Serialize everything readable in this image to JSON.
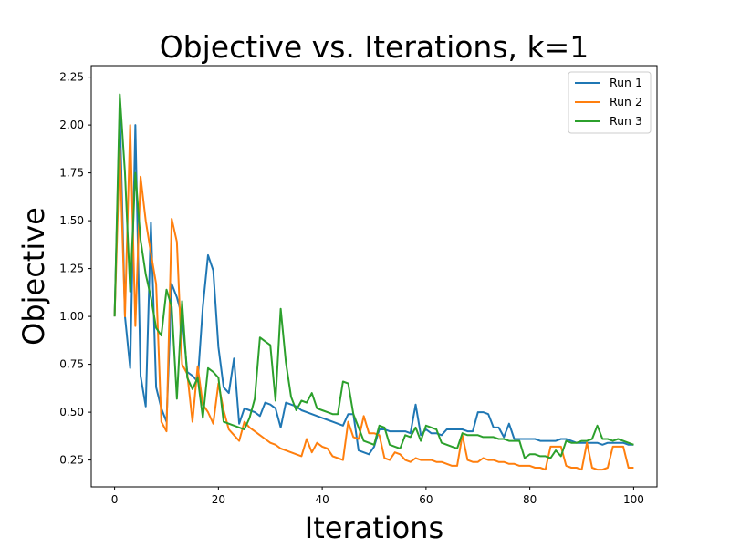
{
  "chart_data": {
    "type": "line",
    "title": "Objective vs. Iterations, k=1",
    "xlabel": "Iterations",
    "ylabel": "Objective",
    "xlim": [
      -4.5,
      104.5
    ],
    "ylim": [
      0.11,
      2.31
    ],
    "xticks": [
      "0",
      "20",
      "40",
      "60",
      "80",
      "100"
    ],
    "yticks": [
      "0.25",
      "0.50",
      "0.75",
      "1.00",
      "1.25",
      "1.50",
      "1.75",
      "2.00",
      "2.25"
    ],
    "grid": false,
    "legend_position": "top-right",
    "series": [
      {
        "name": "Run 1",
        "color": "#1f77b4",
        "x": [
          0,
          1,
          2,
          3,
          4,
          5,
          6,
          7,
          8,
          9,
          10,
          11,
          12,
          13,
          14,
          15,
          16,
          17,
          18,
          19,
          20,
          21,
          22,
          23,
          24,
          25,
          26,
          27,
          28,
          29,
          30,
          31,
          32,
          33,
          34,
          35,
          36,
          37,
          38,
          39,
          40,
          41,
          42,
          43,
          44,
          45,
          46,
          47,
          48,
          49,
          50,
          51,
          52,
          53,
          54,
          55,
          56,
          57,
          58,
          59,
          60,
          61,
          62,
          63,
          64,
          65,
          66,
          67,
          68,
          69,
          70,
          71,
          72,
          73,
          74,
          75,
          76,
          77,
          78,
          79,
          80,
          81,
          82,
          83,
          84,
          85,
          86,
          87,
          88,
          89,
          90,
          91,
          92,
          93,
          94,
          95,
          96,
          97,
          98,
          99,
          100
        ],
        "y": [
          1.0,
          2.08,
          1.0,
          0.73,
          2.0,
          0.69,
          0.53,
          1.49,
          0.63,
          0.52,
          0.45,
          1.17,
          1.1,
          1.0,
          0.71,
          0.69,
          0.66,
          1.05,
          1.32,
          1.24,
          0.84,
          0.63,
          0.6,
          0.78,
          0.44,
          0.52,
          0.51,
          0.5,
          0.48,
          0.55,
          0.54,
          0.52,
          0.42,
          0.55,
          0.54,
          0.53,
          0.51,
          0.5,
          0.49,
          0.48,
          0.47,
          0.46,
          0.45,
          0.44,
          0.43,
          0.49,
          0.49,
          0.3,
          0.29,
          0.28,
          0.32,
          0.41,
          0.41,
          0.4,
          0.4,
          0.4,
          0.4,
          0.39,
          0.54,
          0.38,
          0.41,
          0.39,
          0.39,
          0.38,
          0.41,
          0.41,
          0.41,
          0.41,
          0.4,
          0.4,
          0.5,
          0.5,
          0.49,
          0.42,
          0.42,
          0.37,
          0.44,
          0.36,
          0.36,
          0.36,
          0.36,
          0.36,
          0.35,
          0.35,
          0.35,
          0.35,
          0.36,
          0.36,
          0.35,
          0.34,
          0.34,
          0.34,
          0.34,
          0.34,
          0.33,
          0.34,
          0.34,
          0.34,
          0.34,
          0.33,
          0.33
        ]
      },
      {
        "name": "Run 2",
        "color": "#ff7f0e",
        "x": [
          0,
          1,
          2,
          3,
          4,
          5,
          6,
          7,
          8,
          9,
          10,
          11,
          12,
          13,
          14,
          15,
          16,
          17,
          18,
          19,
          20,
          21,
          22,
          23,
          24,
          25,
          26,
          27,
          28,
          29,
          30,
          31,
          32,
          33,
          34,
          35,
          36,
          37,
          38,
          39,
          40,
          41,
          42,
          43,
          44,
          45,
          46,
          47,
          48,
          49,
          50,
          51,
          52,
          53,
          54,
          55,
          56,
          57,
          58,
          59,
          60,
          61,
          62,
          63,
          64,
          65,
          66,
          67,
          68,
          69,
          70,
          71,
          72,
          73,
          74,
          75,
          76,
          77,
          78,
          79,
          80,
          81,
          82,
          83,
          84,
          85,
          86,
          87,
          88,
          89,
          90,
          91,
          92,
          93,
          94,
          95,
          96,
          97,
          98,
          99,
          100
        ],
        "y": [
          1.0,
          1.88,
          1.0,
          2.0,
          0.95,
          1.73,
          1.5,
          1.33,
          1.17,
          0.45,
          0.4,
          1.51,
          1.39,
          0.75,
          0.7,
          0.45,
          0.74,
          0.54,
          0.5,
          0.44,
          0.65,
          0.51,
          0.41,
          0.38,
          0.35,
          0.45,
          0.42,
          0.4,
          0.38,
          0.36,
          0.34,
          0.33,
          0.31,
          0.3,
          0.29,
          0.28,
          0.27,
          0.36,
          0.29,
          0.34,
          0.32,
          0.31,
          0.27,
          0.26,
          0.25,
          0.45,
          0.37,
          0.36,
          0.48,
          0.39,
          0.39,
          0.38,
          0.26,
          0.25,
          0.29,
          0.28,
          0.25,
          0.24,
          0.26,
          0.25,
          0.25,
          0.25,
          0.24,
          0.24,
          0.23,
          0.22,
          0.22,
          0.38,
          0.25,
          0.24,
          0.24,
          0.26,
          0.25,
          0.25,
          0.24,
          0.24,
          0.23,
          0.23,
          0.22,
          0.22,
          0.22,
          0.21,
          0.21,
          0.2,
          0.32,
          0.32,
          0.32,
          0.22,
          0.21,
          0.21,
          0.2,
          0.34,
          0.21,
          0.2,
          0.2,
          0.21,
          0.32,
          0.32,
          0.32,
          0.21,
          0.21
        ]
      },
      {
        "name": "Run 3",
        "color": "#2ca02c",
        "x": [
          0,
          1,
          2,
          3,
          4,
          5,
          6,
          7,
          8,
          9,
          10,
          11,
          12,
          13,
          14,
          15,
          16,
          17,
          18,
          19,
          20,
          21,
          22,
          23,
          24,
          25,
          26,
          27,
          28,
          29,
          30,
          31,
          32,
          33,
          34,
          35,
          36,
          37,
          38,
          39,
          40,
          41,
          42,
          43,
          44,
          45,
          46,
          47,
          48,
          49,
          50,
          51,
          52,
          53,
          54,
          55,
          56,
          57,
          58,
          59,
          60,
          61,
          62,
          63,
          64,
          65,
          66,
          67,
          68,
          69,
          70,
          71,
          72,
          73,
          74,
          75,
          76,
          77,
          78,
          79,
          80,
          81,
          82,
          83,
          84,
          85,
          86,
          87,
          88,
          89,
          90,
          91,
          92,
          93,
          94,
          95,
          96,
          97,
          98,
          99,
          100
        ],
        "y": [
          1.0,
          2.16,
          1.75,
          1.13,
          1.75,
          1.4,
          1.22,
          1.1,
          0.94,
          0.9,
          1.14,
          1.05,
          0.57,
          1.08,
          0.68,
          0.62,
          0.68,
          0.47,
          0.73,
          0.71,
          0.68,
          0.45,
          0.44,
          0.43,
          0.42,
          0.41,
          0.47,
          0.57,
          0.89,
          0.87,
          0.85,
          0.56,
          1.04,
          0.76,
          0.58,
          0.51,
          0.56,
          0.55,
          0.6,
          0.52,
          0.51,
          0.5,
          0.49,
          0.49,
          0.66,
          0.65,
          0.49,
          0.42,
          0.35,
          0.34,
          0.33,
          0.43,
          0.42,
          0.33,
          0.32,
          0.31,
          0.38,
          0.37,
          0.42,
          0.35,
          0.43,
          0.42,
          0.41,
          0.34,
          0.33,
          0.32,
          0.31,
          0.39,
          0.38,
          0.38,
          0.38,
          0.37,
          0.37,
          0.37,
          0.36,
          0.36,
          0.35,
          0.35,
          0.35,
          0.26,
          0.28,
          0.28,
          0.27,
          0.27,
          0.26,
          0.3,
          0.27,
          0.35,
          0.34,
          0.34,
          0.35,
          0.35,
          0.36,
          0.43,
          0.36,
          0.36,
          0.35,
          0.36,
          0.35,
          0.34,
          0.33
        ]
      }
    ]
  }
}
